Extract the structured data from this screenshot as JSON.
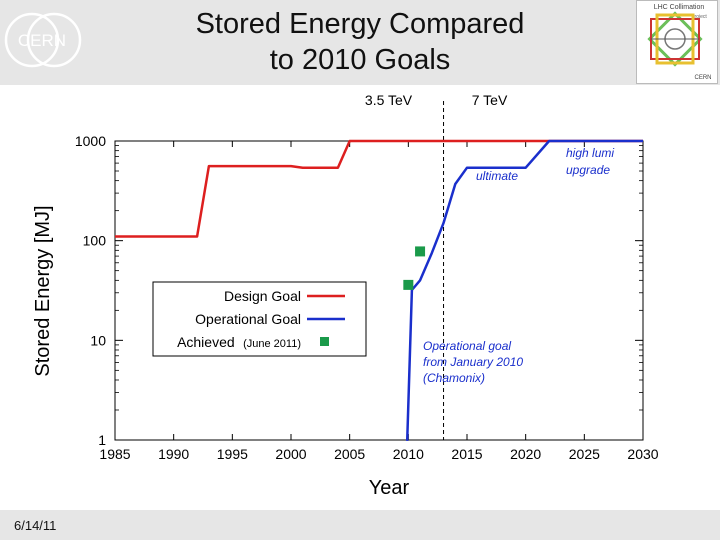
{
  "slide": {
    "title_line1": "Stored Energy Compared",
    "title_line2": "to 2010 Goals",
    "date": "6/14/11",
    "logo_left_text": "CERN",
    "logo_right_line1": "LHC Collimation",
    "logo_right_line2": "Project",
    "logo_right_line3": "CERN"
  },
  "chart_data": {
    "type": "line",
    "xlabel": "Year",
    "ylabel": "Stored Energy [MJ]",
    "xlim": [
      1985,
      2030
    ],
    "ylim": [
      1,
      1000
    ],
    "yscale": "log",
    "xticks": [
      1985,
      1990,
      1995,
      2000,
      2005,
      2010,
      2015,
      2020,
      2025,
      2030
    ],
    "yticks": [
      {
        "value": 1,
        "label": "1"
      },
      {
        "value": 10,
        "label": "10"
      },
      {
        "value": 100,
        "label": "100"
      },
      {
        "value": 1000,
        "label": "1000"
      }
    ],
    "vline": {
      "x": 2013
    },
    "energy_labels": {
      "left": "3.5 TeV",
      "right": "7 TeV"
    },
    "series": [
      {
        "name": "Design Goal",
        "color": "#dd1f1f",
        "points": [
          [
            1985,
            110
          ],
          [
            1992,
            110
          ],
          [
            1993,
            560
          ],
          [
            2000,
            560
          ],
          [
            2001,
            540
          ],
          [
            2004,
            540
          ],
          [
            2005,
            1000
          ],
          [
            2030,
            1000
          ]
        ]
      },
      {
        "name": "Operational Goal",
        "color": "#1a2fcc",
        "points": [
          [
            2009.9,
            0.98
          ],
          [
            2010.3,
            32
          ],
          [
            2011,
            40
          ],
          [
            2012,
            75
          ],
          [
            2013,
            150
          ],
          [
            2014,
            370
          ],
          [
            2015,
            540
          ],
          [
            2020,
            540
          ],
          [
            2022,
            1000
          ],
          [
            2030,
            1000
          ]
        ]
      },
      {
        "name": "Achieved",
        "note": "(June 2011)",
        "color": "#1a9a4a",
        "points": [
          [
            2010,
            36
          ],
          [
            2011,
            78
          ]
        ]
      }
    ],
    "annotations": {
      "ultimate": "ultimate",
      "high_lumi_line1": "high lumi",
      "high_lumi_line2": "upgrade",
      "op_goal_line1": "Operational goal",
      "op_goal_line2": "from January 2010",
      "op_goal_line3": "(Chamonix)"
    }
  }
}
